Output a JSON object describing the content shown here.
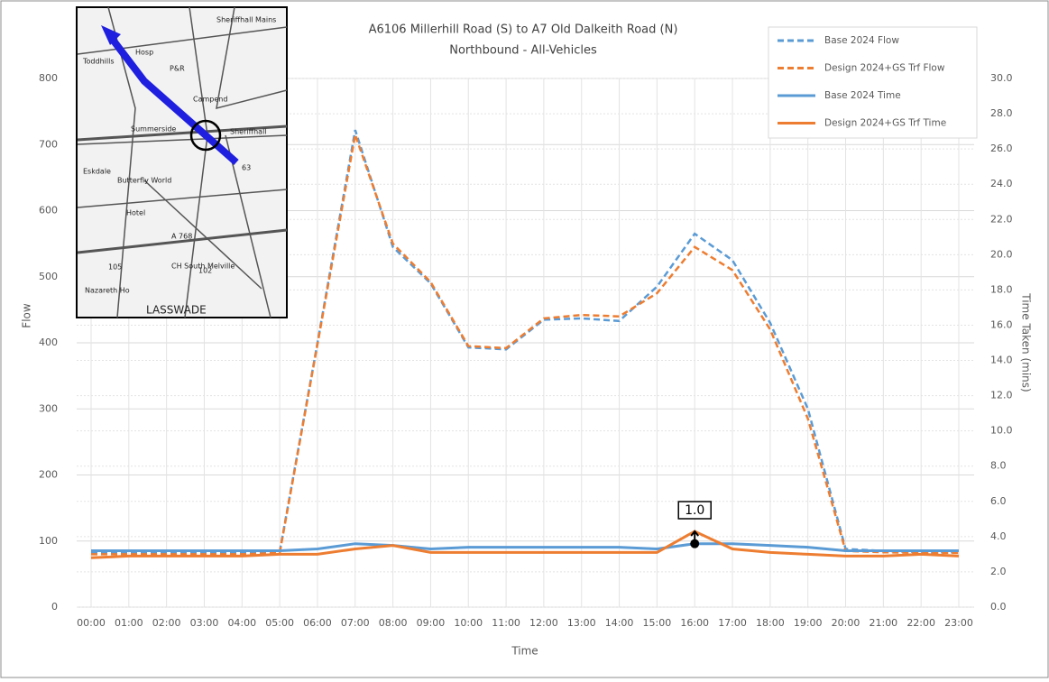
{
  "chart_data": {
    "type": "line",
    "title": "A6106 Millerhill Road (S) to A7 Old Dalkeith Road (N)",
    "subtitle": "Northbound - All-Vehicles",
    "x_label": "Time",
    "y_label": "Flow",
    "y2_label": "Time Taken (mins)",
    "categories": [
      "00:00",
      "01:00",
      "02:00",
      "03:00",
      "04:00",
      "05:00",
      "06:00",
      "07:00",
      "08:00",
      "09:00",
      "10:00",
      "11:00",
      "12:00",
      "13:00",
      "14:00",
      "15:00",
      "16:00",
      "17:00",
      "18:00",
      "19:00",
      "20:00",
      "21:00",
      "22:00",
      "23:00"
    ],
    "series": [
      {
        "name": "Base 2024 Flow",
        "color": "#5b9bd5",
        "dash": true,
        "values": [
          83,
          83,
          83,
          83,
          83,
          84,
          400,
          722,
          545,
          490,
          393,
          390,
          435,
          437,
          433,
          485,
          565,
          525,
          430,
          300,
          88,
          85,
          83,
          83
        ]
      },
      {
        "name": "Design 2024+GS Trf Flow",
        "color": "#ed7d31",
        "dash": true,
        "values": [
          80,
          80,
          80,
          80,
          80,
          82,
          398,
          715,
          550,
          492,
          395,
          392,
          437,
          442,
          440,
          475,
          545,
          510,
          420,
          285,
          85,
          83,
          82,
          82
        ]
      },
      {
        "name": "Base 2024 Time",
        "color": "#5b9bd5",
        "dash": false,
        "axis": "y2",
        "values": [
          3.2,
          3.2,
          3.2,
          3.2,
          3.2,
          3.2,
          3.3,
          3.6,
          3.5,
          3.3,
          3.4,
          3.4,
          3.4,
          3.4,
          3.4,
          3.3,
          3.6,
          3.6,
          3.5,
          3.4,
          3.2,
          3.2,
          3.2,
          3.2
        ]
      },
      {
        "name": "Design 2024+GS Trf Time",
        "color": "#ed7d31",
        "dash": false,
        "axis": "y2",
        "values": [
          2.8,
          2.9,
          2.9,
          2.9,
          2.9,
          3.0,
          3.0,
          3.3,
          3.5,
          3.1,
          3.1,
          3.1,
          3.1,
          3.1,
          3.1,
          3.1,
          4.3,
          3.3,
          3.1,
          3.0,
          2.9,
          2.9,
          3.0,
          2.9
        ]
      }
    ],
    "annotation": "1.0",
    "ylim": [
      0,
      800
    ],
    "yticks": [
      0,
      100,
      200,
      300,
      400,
      500,
      600,
      700,
      800
    ],
    "y2lim": [
      0,
      30
    ],
    "y2ticks": [
      {
        "value": 0,
        "label": "0.0"
      },
      {
        "value": 2,
        "label": "2.0"
      },
      {
        "value": 4,
        "label": "4.0"
      },
      {
        "value": 6,
        "label": "6.0"
      },
      {
        "value": 8,
        "label": "8.0"
      },
      {
        "value": 10,
        "label": "10.0"
      },
      {
        "value": 12,
        "label": "12.0"
      },
      {
        "value": 14,
        "label": "14.0"
      },
      {
        "value": 16,
        "label": "16.0"
      },
      {
        "value": 18,
        "label": "18.0"
      },
      {
        "value": 20,
        "label": "20.0"
      },
      {
        "value": 22,
        "label": "22.0"
      },
      {
        "value": 24,
        "label": "24.0"
      },
      {
        "value": 26,
        "label": "26.0"
      },
      {
        "value": 28,
        "label": "28.0"
      },
      {
        "value": 30,
        "label": "30.0"
      }
    ],
    "grid": true,
    "legend": "upper right"
  },
  "inset_map": {
    "labels": [
      "Toddhills",
      "Hosp",
      "P&R",
      "Sheriffhall Mains",
      "Campend",
      "Summerside",
      "Sheriffhall",
      "Eskdale",
      "Butterfly World",
      "Hotel",
      "A 768",
      "CH South Melville",
      "Nazareth Ho",
      "102",
      "105",
      "63",
      "LASSWADE"
    ]
  }
}
